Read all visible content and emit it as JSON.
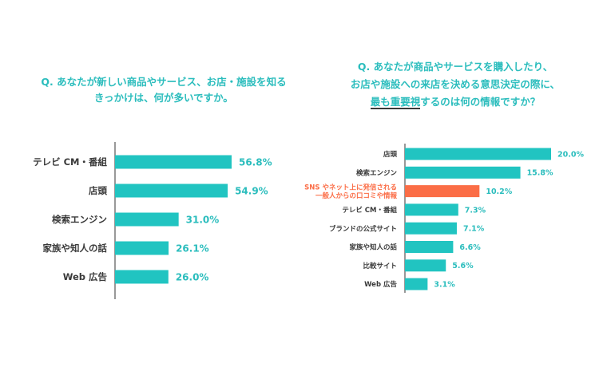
{
  "left": {
    "title_line1": "Q. あなたが新しい商品やサービス、お店・施設を知る",
    "title_line2": "きっかけは、何が多いですか。"
  },
  "right": {
    "title_line1": "Q. あなたが商品やサービスを購入したり、",
    "title_line2": "お店や施設への来店を決める意思決定の際に、",
    "title_line3_ul": "最も重要視",
    "title_line3_rest": "するのは何の情報ですか？"
  },
  "colors": {
    "bar": "#21c4c1",
    "highlight": "#fb6d46",
    "text": "#3a3a3a",
    "value": "#2bbdbd",
    "axis": "#555555"
  },
  "chart_data": [
    {
      "type": "bar",
      "orientation": "horizontal",
      "categories": [
        "テレビ CM・番組",
        "店頭",
        "検索エンジン",
        "家族や知人の話",
        "Web 広告"
      ],
      "values": [
        56.8,
        54.9,
        31.0,
        26.1,
        26.0
      ],
      "value_labels": [
        "56.8%",
        "54.9%",
        "31.0%",
        "26.1%",
        "26.0%"
      ],
      "xlim": [
        0,
        100
      ]
    },
    {
      "type": "bar",
      "orientation": "horizontal",
      "categories": [
        "店頭",
        "検索エンジン",
        "SNS やネット上に発信される\n一般人からの口コミや情報",
        "テレビ CM・番組",
        "ブランドの公式サイト",
        "家族や知人の話",
        "比較サイト",
        "Web 広告"
      ],
      "values": [
        20.0,
        15.8,
        10.2,
        7.3,
        7.1,
        6.6,
        5.6,
        3.1
      ],
      "value_labels": [
        "20.0%",
        "15.8%",
        "10.2%",
        "7.3%",
        "7.1%",
        "6.6%",
        "5.6%",
        "3.1%"
      ],
      "highlight_index": 2,
      "xlim": [
        0,
        35
      ]
    }
  ]
}
